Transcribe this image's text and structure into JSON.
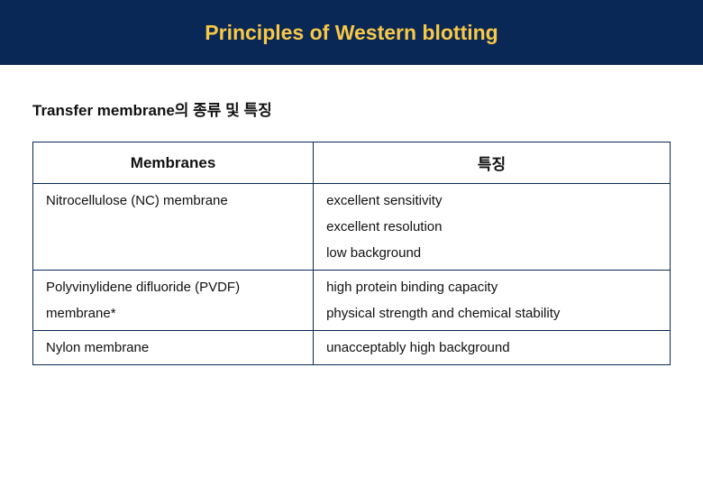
{
  "header": {
    "title": "Principles of Western blotting",
    "background_color": "#0a2855",
    "title_color": "#f9c846",
    "title_fontsize": 23
  },
  "subtitle": "Transfer membrane의 종류 및 특징",
  "table": {
    "columns": [
      "Membranes",
      "특징"
    ],
    "col_widths": [
      "44%",
      "56%"
    ],
    "border_color": "#0a2855",
    "rows": [
      {
        "membrane": "Nitrocellulose (NC) membrane",
        "features": [
          "excellent sensitivity",
          "excellent resolution",
          "low background"
        ]
      },
      {
        "membrane": "Polyvinylidene difluoride (PVDF) membrane*",
        "membrane_lines": [
          "Polyvinylidene difluoride (PVDF)",
          "membrane*"
        ],
        "features": [
          "high protein binding capacity",
          "physical strength and chemical stability"
        ]
      },
      {
        "membrane": "Nylon membrane",
        "features": [
          "unacceptably high background"
        ]
      }
    ]
  },
  "styling": {
    "body_width": 780,
    "body_height": 540,
    "body_bg": "#ffffff",
    "text_color": "#111111",
    "subtitle_fontsize": 17,
    "cell_fontsize": 15
  }
}
